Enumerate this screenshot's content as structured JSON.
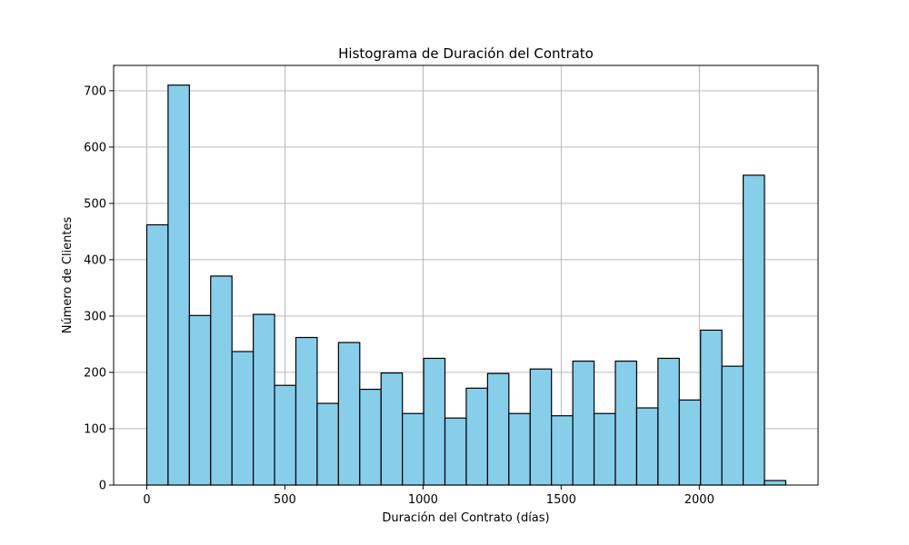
{
  "chart_data": {
    "type": "bar",
    "title": "Histograma de Duración del Contrato",
    "xlabel": "Duración del Contrato (días)",
    "ylabel": "Número de Clientes",
    "xlim": [
      -120,
      2430
    ],
    "ylim": [
      0,
      745
    ],
    "xticks": [
      0,
      500,
      1000,
      1500,
      2000
    ],
    "yticks": [
      0,
      100,
      200,
      300,
      400,
      500,
      600,
      700
    ],
    "grid": true,
    "bar_color": "#87ceeb",
    "edge_color": "#000000",
    "bins": {
      "start": 0,
      "width": 77.1,
      "counts": [
        462,
        710,
        301,
        371,
        237,
        303,
        177,
        262,
        145,
        253,
        170,
        199,
        127,
        225,
        119,
        172,
        198,
        127,
        206,
        123,
        220,
        127,
        220,
        137,
        225,
        151,
        275,
        211,
        550,
        8
      ]
    }
  }
}
